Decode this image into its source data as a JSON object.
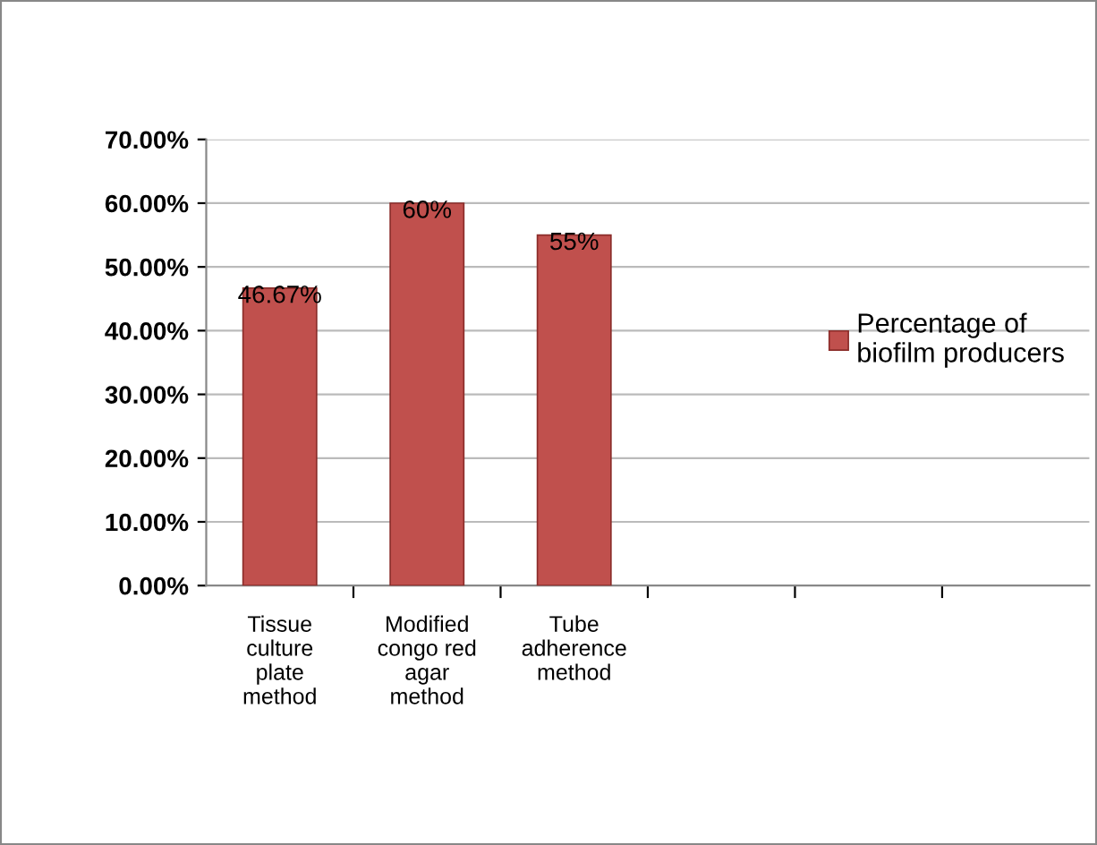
{
  "chart_data": {
    "type": "bar",
    "categories": [
      "Tissue\nculture\nplate\nmethod",
      "Modified\ncongo red\nagar\nmethod",
      "Tube\nadherence\nmethod",
      null,
      null,
      null
    ],
    "series": [
      {
        "name": "Percentage of\nbiofilm producers",
        "color": "#c0504d",
        "values": [
          46.67,
          60,
          55,
          null,
          null,
          null
        ],
        "value_labels": [
          "46.67%",
          "60%",
          "55%",
          null,
          null,
          null
        ]
      }
    ],
    "ylim": [
      0,
      70
    ],
    "yticks": [
      {
        "value": 0,
        "label": "0.00%"
      },
      {
        "value": 10,
        "label": "10.00%"
      },
      {
        "value": 20,
        "label": "20.00%"
      },
      {
        "value": 30,
        "label": "30.00%"
      },
      {
        "value": 40,
        "label": "40.00%"
      },
      {
        "value": 50,
        "label": "50.00%"
      },
      {
        "value": 60,
        "label": "60.00%"
      },
      {
        "value": 70,
        "label": "70.00%"
      }
    ],
    "grid": "y",
    "legend": "right"
  }
}
